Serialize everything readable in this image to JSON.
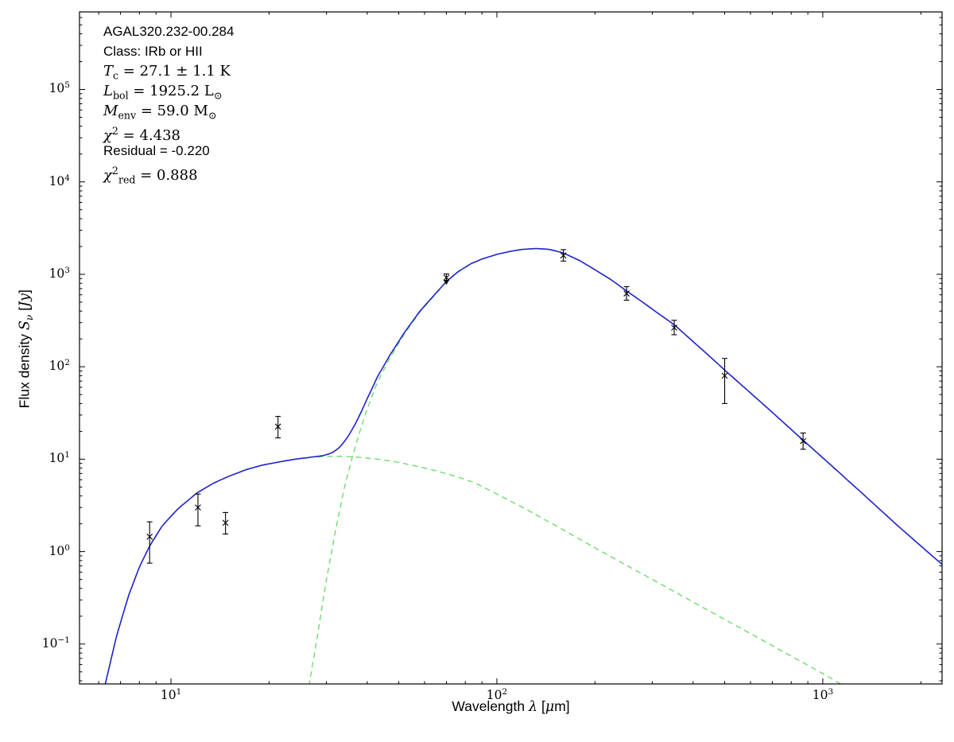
{
  "figure": {
    "background": "#ffffff",
    "axis_color": "#000000"
  },
  "annotation": {
    "lines": [
      {
        "font": "sans",
        "segments": [
          {
            "t": "AGAL320.232-00.284"
          }
        ]
      },
      {
        "font": "sans",
        "segments": [
          {
            "t": "Class: IRb or HII"
          }
        ]
      },
      {
        "font": "serif",
        "segments": [
          {
            "t": "T",
            "it": true
          },
          {
            "t": "c",
            "sub": true
          },
          {
            "t": " = 27.1 ± 1.1 K"
          }
        ]
      },
      {
        "font": "serif",
        "segments": [
          {
            "t": "L",
            "it": true
          },
          {
            "t": "bol",
            "sub": true
          },
          {
            "t": " = 1925.2 L"
          },
          {
            "t": "⊙",
            "sub": true
          }
        ]
      },
      {
        "font": "serif",
        "segments": [
          {
            "t": "M",
            "it": true
          },
          {
            "t": "env",
            "sub": true
          },
          {
            "t": " = 59.0 M"
          },
          {
            "t": "⊙",
            "sub": true
          }
        ]
      },
      {
        "font": "serif",
        "segments": [
          {
            "t": "χ",
            "it": true
          },
          {
            "t": "2",
            "sup": true
          },
          {
            "t": " = 4.438"
          }
        ]
      },
      {
        "font": "sans",
        "segments": [
          {
            "t": "Residual = -0.220"
          }
        ]
      },
      {
        "font": "serif",
        "segments": [
          {
            "t": "χ",
            "it": true
          },
          {
            "t": "2",
            "sup": true
          },
          {
            "t": "red",
            "sub": true
          },
          {
            "t": " = 0.888"
          }
        ]
      }
    ]
  },
  "chart_data": {
    "type": "line",
    "title": "",
    "xscale": "log",
    "yscale": "log",
    "xlim": [
      5.24,
      2323
    ],
    "ylim": [
      0.037,
      690000
    ],
    "grid": false,
    "legend": "none",
    "xlabel_segments": [
      {
        "t": "Wavelength "
      },
      {
        "t": "λ",
        "it": true
      },
      {
        "t": " ["
      },
      {
        "t": "μ",
        "it": true
      },
      {
        "t": "m]"
      }
    ],
    "ylabel_segments": [
      {
        "t": "Flux density "
      },
      {
        "t": "S",
        "it": true
      },
      {
        "t": "ν",
        "sub": true,
        "it": true
      },
      {
        "t": " ["
      },
      {
        "t": "Jy",
        "it": true
      },
      {
        "t": "]"
      }
    ],
    "x_tick_exponents": [
      1,
      2,
      3
    ],
    "y_tick_exponents": [
      -1,
      0,
      1,
      2,
      3,
      4,
      5
    ],
    "series": [
      {
        "name": "total-model",
        "color": "#2222cc",
        "style": "solid",
        "width": 1.6,
        "derived": "sum_of_components"
      },
      {
        "name": "warm-component",
        "color": "#6fdc6f",
        "style": "dashed",
        "width": 1.4,
        "points": [
          [
            6.2,
            0.03
          ],
          [
            6.8,
            0.12
          ],
          [
            7.4,
            0.33
          ],
          [
            8.0,
            0.68
          ],
          [
            8.6,
            1.15
          ],
          [
            9.4,
            1.9
          ],
          [
            10.5,
            2.9
          ],
          [
            12,
            4.3
          ],
          [
            13.5,
            5.5
          ],
          [
            15,
            6.5
          ],
          [
            17,
            7.7
          ],
          [
            19,
            8.6
          ],
          [
            21,
            9.2
          ],
          [
            24,
            10.0
          ],
          [
            27,
            10.5
          ],
          [
            30,
            10.7
          ],
          [
            33,
            10.75
          ],
          [
            37,
            10.55
          ],
          [
            42,
            10.1
          ],
          [
            48,
            9.5
          ],
          [
            55,
            8.6
          ],
          [
            65,
            7.5
          ],
          [
            75,
            6.5
          ],
          [
            85,
            5.6
          ],
          [
            100,
            4.2
          ],
          [
            120,
            3.0
          ],
          [
            150,
            1.95
          ],
          [
            200,
            1.1
          ],
          [
            250,
            0.71
          ],
          [
            300,
            0.5
          ],
          [
            400,
            0.285
          ],
          [
            500,
            0.185
          ],
          [
            650,
            0.111
          ],
          [
            800,
            0.074
          ],
          [
            1000,
            0.048
          ],
          [
            1150,
            0.036
          ]
        ]
      },
      {
        "name": "cold-component",
        "color": "#6fdc6f",
        "style": "dashed",
        "width": 1.4,
        "points": [
          [
            26.5,
            0.035
          ],
          [
            28,
            0.11
          ],
          [
            30,
            0.5
          ],
          [
            32,
            1.7
          ],
          [
            34,
            4.8
          ],
          [
            36,
            10.5
          ],
          [
            38,
            20
          ],
          [
            40,
            35
          ],
          [
            43,
            68
          ],
          [
            47,
            125
          ],
          [
            52,
            225
          ],
          [
            58,
            390
          ],
          [
            64,
            580
          ],
          [
            70,
            830
          ],
          [
            76,
            1060
          ],
          [
            83,
            1290
          ],
          [
            90,
            1460
          ],
          [
            100,
            1640
          ],
          [
            110,
            1770
          ],
          [
            120,
            1860
          ],
          [
            132,
            1900
          ],
          [
            145,
            1860
          ],
          [
            160,
            1700
          ],
          [
            180,
            1400
          ],
          [
            200,
            1120
          ],
          [
            225,
            865
          ],
          [
            250,
            660
          ],
          [
            280,
            500
          ],
          [
            315,
            370
          ],
          [
            350,
            285
          ],
          [
            400,
            187
          ],
          [
            450,
            129
          ],
          [
            500,
            92
          ],
          [
            600,
            52
          ],
          [
            700,
            32
          ],
          [
            870,
            16
          ],
          [
            1000,
            10.3
          ],
          [
            1300,
            4.5
          ],
          [
            1700,
            1.9
          ],
          [
            2000,
            1.15
          ],
          [
            2330,
            0.72
          ]
        ]
      }
    ],
    "observations": {
      "marker": "x",
      "color": "#000000",
      "points": [
        {
          "x": 8.6,
          "y": 1.45,
          "lo": 0.75,
          "hi": 2.1
        },
        {
          "x": 12.1,
          "y": 3.0,
          "lo": 1.9,
          "hi": 4.2
        },
        {
          "x": 14.7,
          "y": 2.05,
          "lo": 1.55,
          "hi": 2.65
        },
        {
          "x": 21.3,
          "y": 22.5,
          "lo": 17,
          "hi": 29
        },
        {
          "x": 70,
          "y": 920,
          "lo": 770,
          "hi": 1010,
          "limit": "upper"
        },
        {
          "x": 160,
          "y": 1600,
          "lo": 1390,
          "hi": 1850
        },
        {
          "x": 250,
          "y": 620,
          "lo": 525,
          "hi": 735
        },
        {
          "x": 350,
          "y": 265,
          "lo": 222,
          "hi": 318
        },
        {
          "x": 500,
          "y": 80,
          "lo": 40,
          "hi": 123
        },
        {
          "x": 870,
          "y": 15.7,
          "lo": 12.8,
          "hi": 19.2
        }
      ]
    }
  }
}
